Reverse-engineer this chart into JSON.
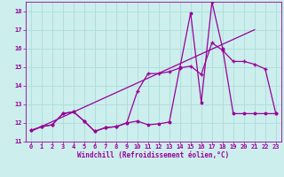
{
  "xlabel": "Windchill (Refroidissement éolien,°C)",
  "bg_color": "#cceeed",
  "grid_color": "#aadddb",
  "line_color": "#990099",
  "xlim": [
    -0.5,
    23.5
  ],
  "ylim": [
    11,
    18.5
  ],
  "yticks": [
    11,
    12,
    13,
    14,
    15,
    16,
    17,
    18
  ],
  "xticks": [
    0,
    1,
    2,
    3,
    4,
    5,
    6,
    7,
    8,
    9,
    10,
    11,
    12,
    13,
    14,
    15,
    16,
    17,
    18,
    19,
    20,
    21,
    22,
    23
  ],
  "series1_x": [
    0,
    1,
    2,
    3,
    4,
    5,
    6,
    7,
    8,
    9,
    10,
    11,
    12,
    13,
    14,
    15,
    16,
    17,
    18,
    19,
    20,
    21,
    22,
    23
  ],
  "series1_y": [
    11.6,
    11.8,
    11.9,
    12.5,
    12.6,
    12.1,
    11.55,
    11.75,
    11.8,
    12.0,
    12.1,
    11.9,
    11.95,
    12.05,
    15.0,
    17.9,
    13.1,
    18.5,
    16.0,
    12.5,
    12.5,
    12.5,
    12.5,
    12.5
  ],
  "series2_x": [
    0,
    1,
    2,
    3,
    4,
    5,
    6,
    7,
    8,
    9,
    10,
    11,
    12,
    13,
    14,
    15,
    16,
    17,
    18,
    19,
    20,
    21,
    22,
    23
  ],
  "series2_y": [
    11.6,
    11.8,
    11.9,
    12.5,
    12.6,
    12.1,
    11.55,
    11.75,
    11.8,
    12.0,
    13.7,
    14.65,
    14.65,
    14.75,
    14.95,
    15.05,
    14.6,
    16.3,
    15.9,
    15.3,
    15.3,
    15.15,
    14.9,
    12.5
  ],
  "trend_x": [
    0,
    21
  ],
  "trend_y": [
    11.55,
    17.0
  ]
}
